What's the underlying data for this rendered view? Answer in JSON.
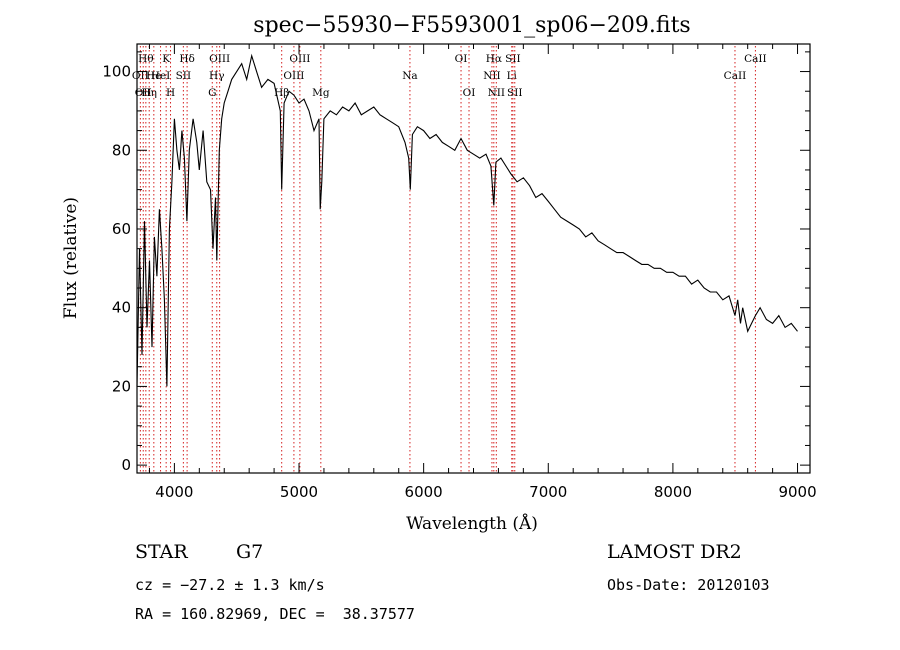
{
  "colors": {
    "spectrum": "#000000",
    "line_markers": "#d42020",
    "axes": "#000000"
  },
  "footer": {
    "object_class": "STAR",
    "subclass": "G7",
    "cz": "cz = −27.2 ± 1.3 km/s",
    "coords": "RA = 160.82969, DEC =  38.37577",
    "survey": "LAMOST DR2",
    "obs_date": "Obs-Date: 20120103"
  },
  "chart_data": {
    "type": "line",
    "title": "spec−55930−F5593001_sp06−209.fits",
    "xlabel": "Wavelength (Å)",
    "ylabel": "Flux (relative)",
    "xlim": [
      3700,
      9100
    ],
    "ylim": [
      -2,
      107
    ],
    "xticks": [
      4000,
      5000,
      6000,
      7000,
      8000,
      9000
    ],
    "yticks": [
      0,
      20,
      40,
      60,
      80,
      100
    ],
    "grid": false,
    "legend": "none",
    "series": [
      {
        "x": [
          3700,
          3720,
          3740,
          3760,
          3780,
          3800,
          3820,
          3840,
          3860,
          3880,
          3900,
          3920,
          3940,
          3960,
          3980,
          4000,
          4020,
          4040,
          4060,
          4080,
          4100,
          4120,
          4150,
          4180,
          4200,
          4230,
          4260,
          4290,
          4310,
          4330,
          4340,
          4360,
          4380,
          4400,
          4430,
          4460,
          4500,
          4540,
          4580,
          4620,
          4660,
          4700,
          4750,
          4800,
          4850,
          4861,
          4880,
          4920,
          4960,
          5000,
          5040,
          5080,
          5120,
          5160,
          5170,
          5183,
          5200,
          5250,
          5300,
          5350,
          5400,
          5450,
          5500,
          5550,
          5600,
          5650,
          5700,
          5750,
          5800,
          5850,
          5880,
          5893,
          5910,
          5950,
          6000,
          6050,
          6100,
          6150,
          6200,
          6250,
          6300,
          6350,
          6400,
          6450,
          6500,
          6540,
          6563,
          6580,
          6620,
          6660,
          6700,
          6750,
          6800,
          6850,
          6900,
          6950,
          7000,
          7050,
          7100,
          7150,
          7200,
          7250,
          7300,
          7350,
          7400,
          7450,
          7500,
          7550,
          7600,
          7650,
          7700,
          7750,
          7800,
          7850,
          7900,
          7950,
          8000,
          8050,
          8100,
          8150,
          8200,
          8250,
          8300,
          8350,
          8400,
          8450,
          8498,
          8520,
          8542,
          8560,
          8600,
          8662,
          8700,
          8750,
          8800,
          8850,
          8900,
          8950,
          9000
        ],
        "y": [
          20,
          55,
          28,
          62,
          35,
          52,
          30,
          58,
          48,
          65,
          55,
          42,
          20,
          60,
          72,
          88,
          80,
          75,
          85,
          78,
          62,
          80,
          88,
          82,
          75,
          85,
          72,
          70,
          55,
          68,
          52,
          80,
          88,
          92,
          95,
          98,
          100,
          102,
          98,
          104,
          100,
          96,
          98,
          97,
          90,
          70,
          92,
          95,
          94,
          92,
          93,
          90,
          85,
          88,
          65,
          72,
          88,
          90,
          89,
          91,
          90,
          92,
          89,
          90,
          91,
          89,
          88,
          87,
          86,
          82,
          78,
          70,
          84,
          86,
          85,
          83,
          84,
          82,
          81,
          80,
          83,
          80,
          79,
          78,
          79,
          76,
          66,
          77,
          78,
          76,
          74,
          72,
          73,
          71,
          68,
          69,
          67,
          65,
          63,
          62,
          61,
          60,
          58,
          59,
          57,
          56,
          55,
          54,
          54,
          53,
          52,
          51,
          51,
          50,
          50,
          49,
          49,
          48,
          48,
          46,
          47,
          45,
          44,
          44,
          42,
          43,
          38,
          42,
          36,
          40,
          34,
          38,
          40,
          37,
          36,
          38,
          35,
          36,
          34
        ]
      }
    ],
    "line_markers": [
      {
        "wavelength": 3727,
        "label": "OII",
        "row": 2
      },
      {
        "wavelength": 3750,
        "label": "OII",
        "row": 3
      },
      {
        "wavelength": 3771,
        "label": "Hθ",
        "row": 1
      },
      {
        "wavelength": 3798,
        "label": "Hη",
        "row": 3
      },
      {
        "wavelength": 3835,
        "label": "He",
        "row": 2
      },
      {
        "wavelength": 3889,
        "label": "HeI",
        "row": 2
      },
      {
        "wavelength": 3934,
        "label": "K",
        "row": 1
      },
      {
        "wavelength": 3969,
        "label": "H",
        "row": 3
      },
      {
        "wavelength": 4072,
        "label": "SII",
        "row": 2
      },
      {
        "wavelength": 4102,
        "label": "Hδ",
        "row": 1
      },
      {
        "wavelength": 4304,
        "label": "G",
        "row": 3
      },
      {
        "wavelength": 4340,
        "label": "Hγ",
        "row": 2
      },
      {
        "wavelength": 4363,
        "label": "OIII",
        "row": 1
      },
      {
        "wavelength": 4861,
        "label": "Hβ",
        "row": 3
      },
      {
        "wavelength": 4959,
        "label": "OIII",
        "row": 2
      },
      {
        "wavelength": 5007,
        "label": "OIII",
        "row": 1
      },
      {
        "wavelength": 5175,
        "label": "Mg",
        "row": 3
      },
      {
        "wavelength": 5890,
        "label": "Na",
        "row": 2
      },
      {
        "wavelength": 6300,
        "label": "OI",
        "row": 1
      },
      {
        "wavelength": 6364,
        "label": "OI",
        "row": 3
      },
      {
        "wavelength": 6548,
        "label": "NII",
        "row": 2
      },
      {
        "wavelength": 6563,
        "label": "Hα",
        "row": 1
      },
      {
        "wavelength": 6583,
        "label": "NII",
        "row": 3
      },
      {
        "wavelength": 6707,
        "label": "Li",
        "row": 2
      },
      {
        "wavelength": 6716,
        "label": "SII",
        "row": 1
      },
      {
        "wavelength": 6731,
        "label": "SII",
        "row": 3
      },
      {
        "wavelength": 8498,
        "label": "CaII",
        "row": 2
      },
      {
        "wavelength": 8662,
        "label": "CaII",
        "row": 1
      }
    ]
  }
}
